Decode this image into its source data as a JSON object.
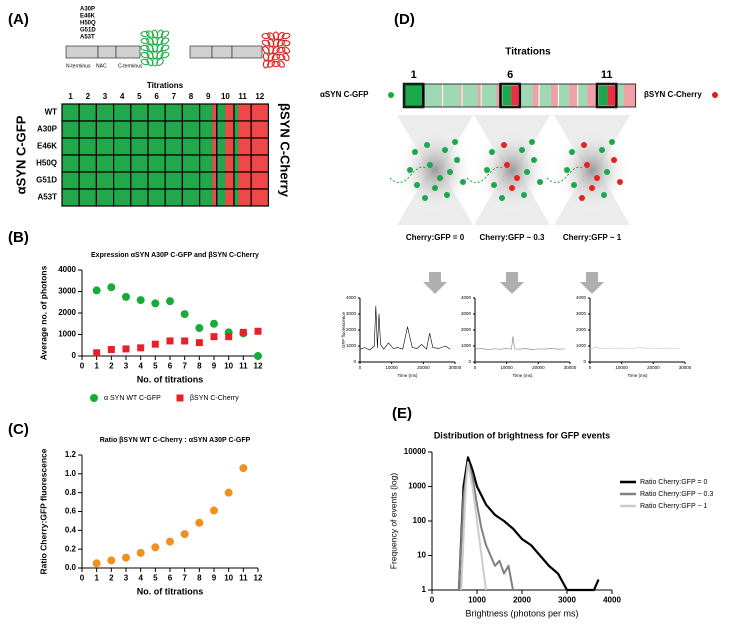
{
  "panel_a": {
    "label": "(A)",
    "mutations": [
      {
        "text": "A30P",
        "color": "#e03a3a"
      },
      {
        "text": "E46K",
        "color": "#9a9a2a"
      },
      {
        "text": "H50Q",
        "color": "#8a4ab0"
      },
      {
        "text": "G51D",
        "color": "#2aa8c8"
      },
      {
        "text": "A53T",
        "color": "#f0902a"
      }
    ],
    "domains": [
      "N-terminus",
      "NAC",
      "C-terminus"
    ],
    "titrations_title": "Titrations",
    "columns": [
      "1",
      "2",
      "3",
      "4",
      "5",
      "6",
      "7",
      "8",
      "9",
      "10",
      "11",
      "12"
    ],
    "rows": [
      "WT",
      "A30P",
      "E46K",
      "H50Q",
      "G51D",
      "A53T"
    ],
    "left_label": "αSYN C-GFP",
    "right_label": "βSYN C-Cherry"
  },
  "panel_d": {
    "label": "(D)",
    "titrations_title": "Titrations",
    "marks": [
      "1",
      "6",
      "11"
    ],
    "left_label": "αSYN C-GFP",
    "right_label": "βSYN C-Cherry",
    "conditions": [
      "Cherry:GFP = 0",
      "Cherry:GFP ~ 0.3",
      "Cherry:GFP ~ 1"
    ]
  },
  "chart_data": [
    {
      "type": "scatter",
      "panel": "(B)",
      "title": "Expression αSYN  A30P C-GFP and βSYN C-Cherry",
      "xlabel": "No. of titrations",
      "ylabel": "Average no. of photons",
      "xlim": [
        0,
        12
      ],
      "ylim": [
        0,
        4000
      ],
      "xticks": [
        0,
        1,
        2,
        3,
        4,
        5,
        6,
        7,
        8,
        9,
        10,
        11,
        12
      ],
      "yticks": [
        0,
        1000,
        2000,
        3000,
        4000
      ],
      "legend": "bottom",
      "series": [
        {
          "name": "α  SYN WT  C-GFP",
          "color": "#1aaa3a",
          "marker": "circle",
          "x": [
            1,
            2,
            3,
            4,
            5,
            6,
            7,
            8,
            9,
            10,
            11,
            12
          ],
          "values": [
            3050,
            3200,
            2750,
            2600,
            2450,
            2550,
            1950,
            1300,
            1500,
            1100,
            1050,
            0
          ]
        },
        {
          "name": "βSYN  C-Cherry",
          "color": "#e8202a",
          "marker": "square",
          "x": [
            1,
            2,
            3,
            4,
            5,
            6,
            7,
            8,
            9,
            10,
            11,
            12
          ],
          "values": [
            150,
            300,
            330,
            380,
            550,
            700,
            700,
            620,
            900,
            900,
            1100,
            1150
          ]
        }
      ]
    },
    {
      "type": "scatter",
      "panel": "(C)",
      "title": "Ratio βSYN  WT  C-Cherry : αSYN A30P  C-GFP",
      "xlabel": "No. of titrations",
      "ylabel": "Ratio Cherry:GFP fluorescence",
      "xlim": [
        0,
        12
      ],
      "ylim": [
        0,
        1.2
      ],
      "xticks": [
        0,
        1,
        2,
        3,
        4,
        5,
        6,
        7,
        8,
        9,
        10,
        11,
        12
      ],
      "yticks": [
        {
          "value": 0,
          "label": "0.0"
        },
        0.2,
        0.4,
        0.6,
        0.8,
        {
          "value": 1,
          "label": "1.0"
        },
        1.2
      ],
      "series": [
        {
          "color": "#f0901e",
          "marker": "circle",
          "x": [
            1,
            2,
            3,
            4,
            5,
            6,
            7,
            8,
            9,
            10,
            11
          ],
          "values": [
            0.05,
            0.08,
            0.11,
            0.16,
            0.22,
            0.28,
            0.36,
            0.48,
            0.61,
            0.8,
            1.06
          ]
        }
      ]
    },
    {
      "type": "line",
      "xlabel": "Time (ms)",
      "ylabel": "GFP fluorescence",
      "xlim": [
        0,
        30000
      ],
      "ylim": [
        0,
        4000
      ],
      "xticks": [
        0,
        10000,
        20000,
        30000
      ],
      "yticks": [
        0,
        1000,
        2000,
        3000,
        4000
      ],
      "series": [
        {
          "color": "#000000",
          "x": [
            0,
            1500,
            3000,
            4500,
            5000,
            5500,
            6000,
            6500,
            7500,
            9000,
            10500,
            12000,
            13500,
            15000,
            16500,
            18000,
            19500,
            21000,
            22000,
            23000,
            25000,
            27000,
            28500
          ],
          "values": [
            800,
            900,
            750,
            1000,
            3500,
            900,
            3000,
            1100,
            800,
            1200,
            850,
            900,
            800,
            2200,
            900,
            850,
            1100,
            800,
            1800,
            900,
            850,
            1000,
            800
          ]
        }
      ]
    },
    {
      "type": "line",
      "xlabel": "Time (ms)",
      "xlim": [
        0,
        30000
      ],
      "ylim": [
        0,
        4000
      ],
      "xticks": [
        0,
        10000,
        20000,
        30000
      ],
      "yticks": [
        0,
        1000,
        2000,
        3000,
        4000
      ],
      "series": [
        {
          "color": "#808080",
          "x": [
            0,
            2000,
            4000,
            6000,
            8000,
            10000,
            11500,
            12000,
            12500,
            14000,
            16000,
            18000,
            20000,
            22000,
            24000,
            26000,
            28500
          ],
          "values": [
            800,
            850,
            780,
            820,
            800,
            850,
            800,
            1600,
            820,
            800,
            850,
            780,
            820,
            800,
            850,
            800,
            820
          ]
        }
      ]
    },
    {
      "type": "line",
      "xlabel": "Time (ms)",
      "xlim": [
        0,
        30000
      ],
      "ylim": [
        0,
        4000
      ],
      "xticks": [
        0,
        10000,
        20000,
        30000
      ],
      "yticks": [
        0,
        1000,
        2000,
        3000,
        4000
      ],
      "series": [
        {
          "color": "#c8c8c8",
          "x": [
            0,
            2000,
            4000,
            6000,
            8000,
            10000,
            12000,
            14000,
            16000,
            18000,
            20000,
            22000,
            24000,
            26000,
            28500
          ],
          "values": [
            850,
            900,
            830,
            870,
            850,
            880,
            840,
            860,
            900,
            850,
            870,
            830,
            880,
            850,
            860
          ]
        }
      ]
    },
    {
      "type": "line",
      "panel": "(E)",
      "title": "Distribution of brightness for GFP events",
      "xlabel": "Brightness (photons per ms)",
      "ylabel": "Frequency of events (log)",
      "xlim": [
        0,
        4000
      ],
      "ylim": [
        1,
        10000
      ],
      "log_y": true,
      "xticks": [
        0,
        1000,
        2000,
        3000,
        4000
      ],
      "yticks": [
        1,
        10,
        100,
        1000,
        10000
      ],
      "legend": "right",
      "series": [
        {
          "name": "Ratio Cherry:GFP = 0",
          "color": "#000000",
          "width": 2.2,
          "x": [
            600,
            700,
            800,
            900,
            1000,
            1200,
            1400,
            1600,
            1800,
            2000,
            2200,
            2400,
            2600,
            2800,
            3000,
            3600,
            3700
          ],
          "values": [
            1,
            1000,
            7000,
            3000,
            1000,
            300,
            150,
            100,
            60,
            30,
            20,
            10,
            5,
            3,
            1,
            1,
            2
          ]
        },
        {
          "name": "Ratio Cherry:GFP ~ 0.3",
          "color": "#808080",
          "width": 2,
          "x": [
            600,
            700,
            800,
            900,
            1000,
            1100,
            1200,
            1300,
            1400,
            1500,
            1600,
            1700,
            1800
          ],
          "values": [
            1,
            500,
            5000,
            2000,
            300,
            60,
            20,
            10,
            5,
            7,
            3,
            5,
            1
          ]
        },
        {
          "name": "Ratio Cherry:GFP ~ 1",
          "color": "#cccccc",
          "width": 2,
          "x": [
            650,
            750,
            800,
            900,
            1000,
            1100,
            1200
          ],
          "values": [
            1,
            1000,
            5000,
            1000,
            100,
            10,
            1
          ]
        }
      ]
    }
  ]
}
